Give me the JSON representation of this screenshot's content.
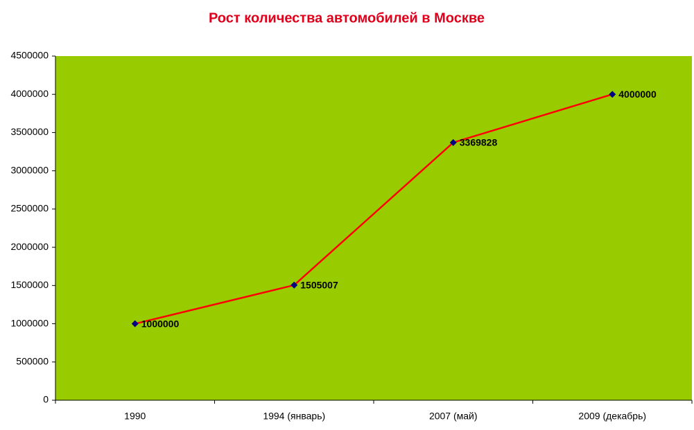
{
  "chart_data": {
    "type": "line",
    "title": "Рост количества автомобилей в Москве",
    "categories": [
      "1990",
      "1994 (январь)",
      "2007 (май)",
      "2009 (декабрь)"
    ],
    "values": [
      1000000,
      1505007,
      3369828,
      4000000
    ],
    "color": "#ff0000",
    "marker_color": "#000080",
    "plot_background": "#99cc00",
    "ylim": [
      0,
      4500000
    ],
    "yticks": [
      0,
      500000,
      1000000,
      1500000,
      2000000,
      2500000,
      3000000,
      3500000,
      4000000,
      4500000
    ],
    "grid": false,
    "data_labels": true
  }
}
